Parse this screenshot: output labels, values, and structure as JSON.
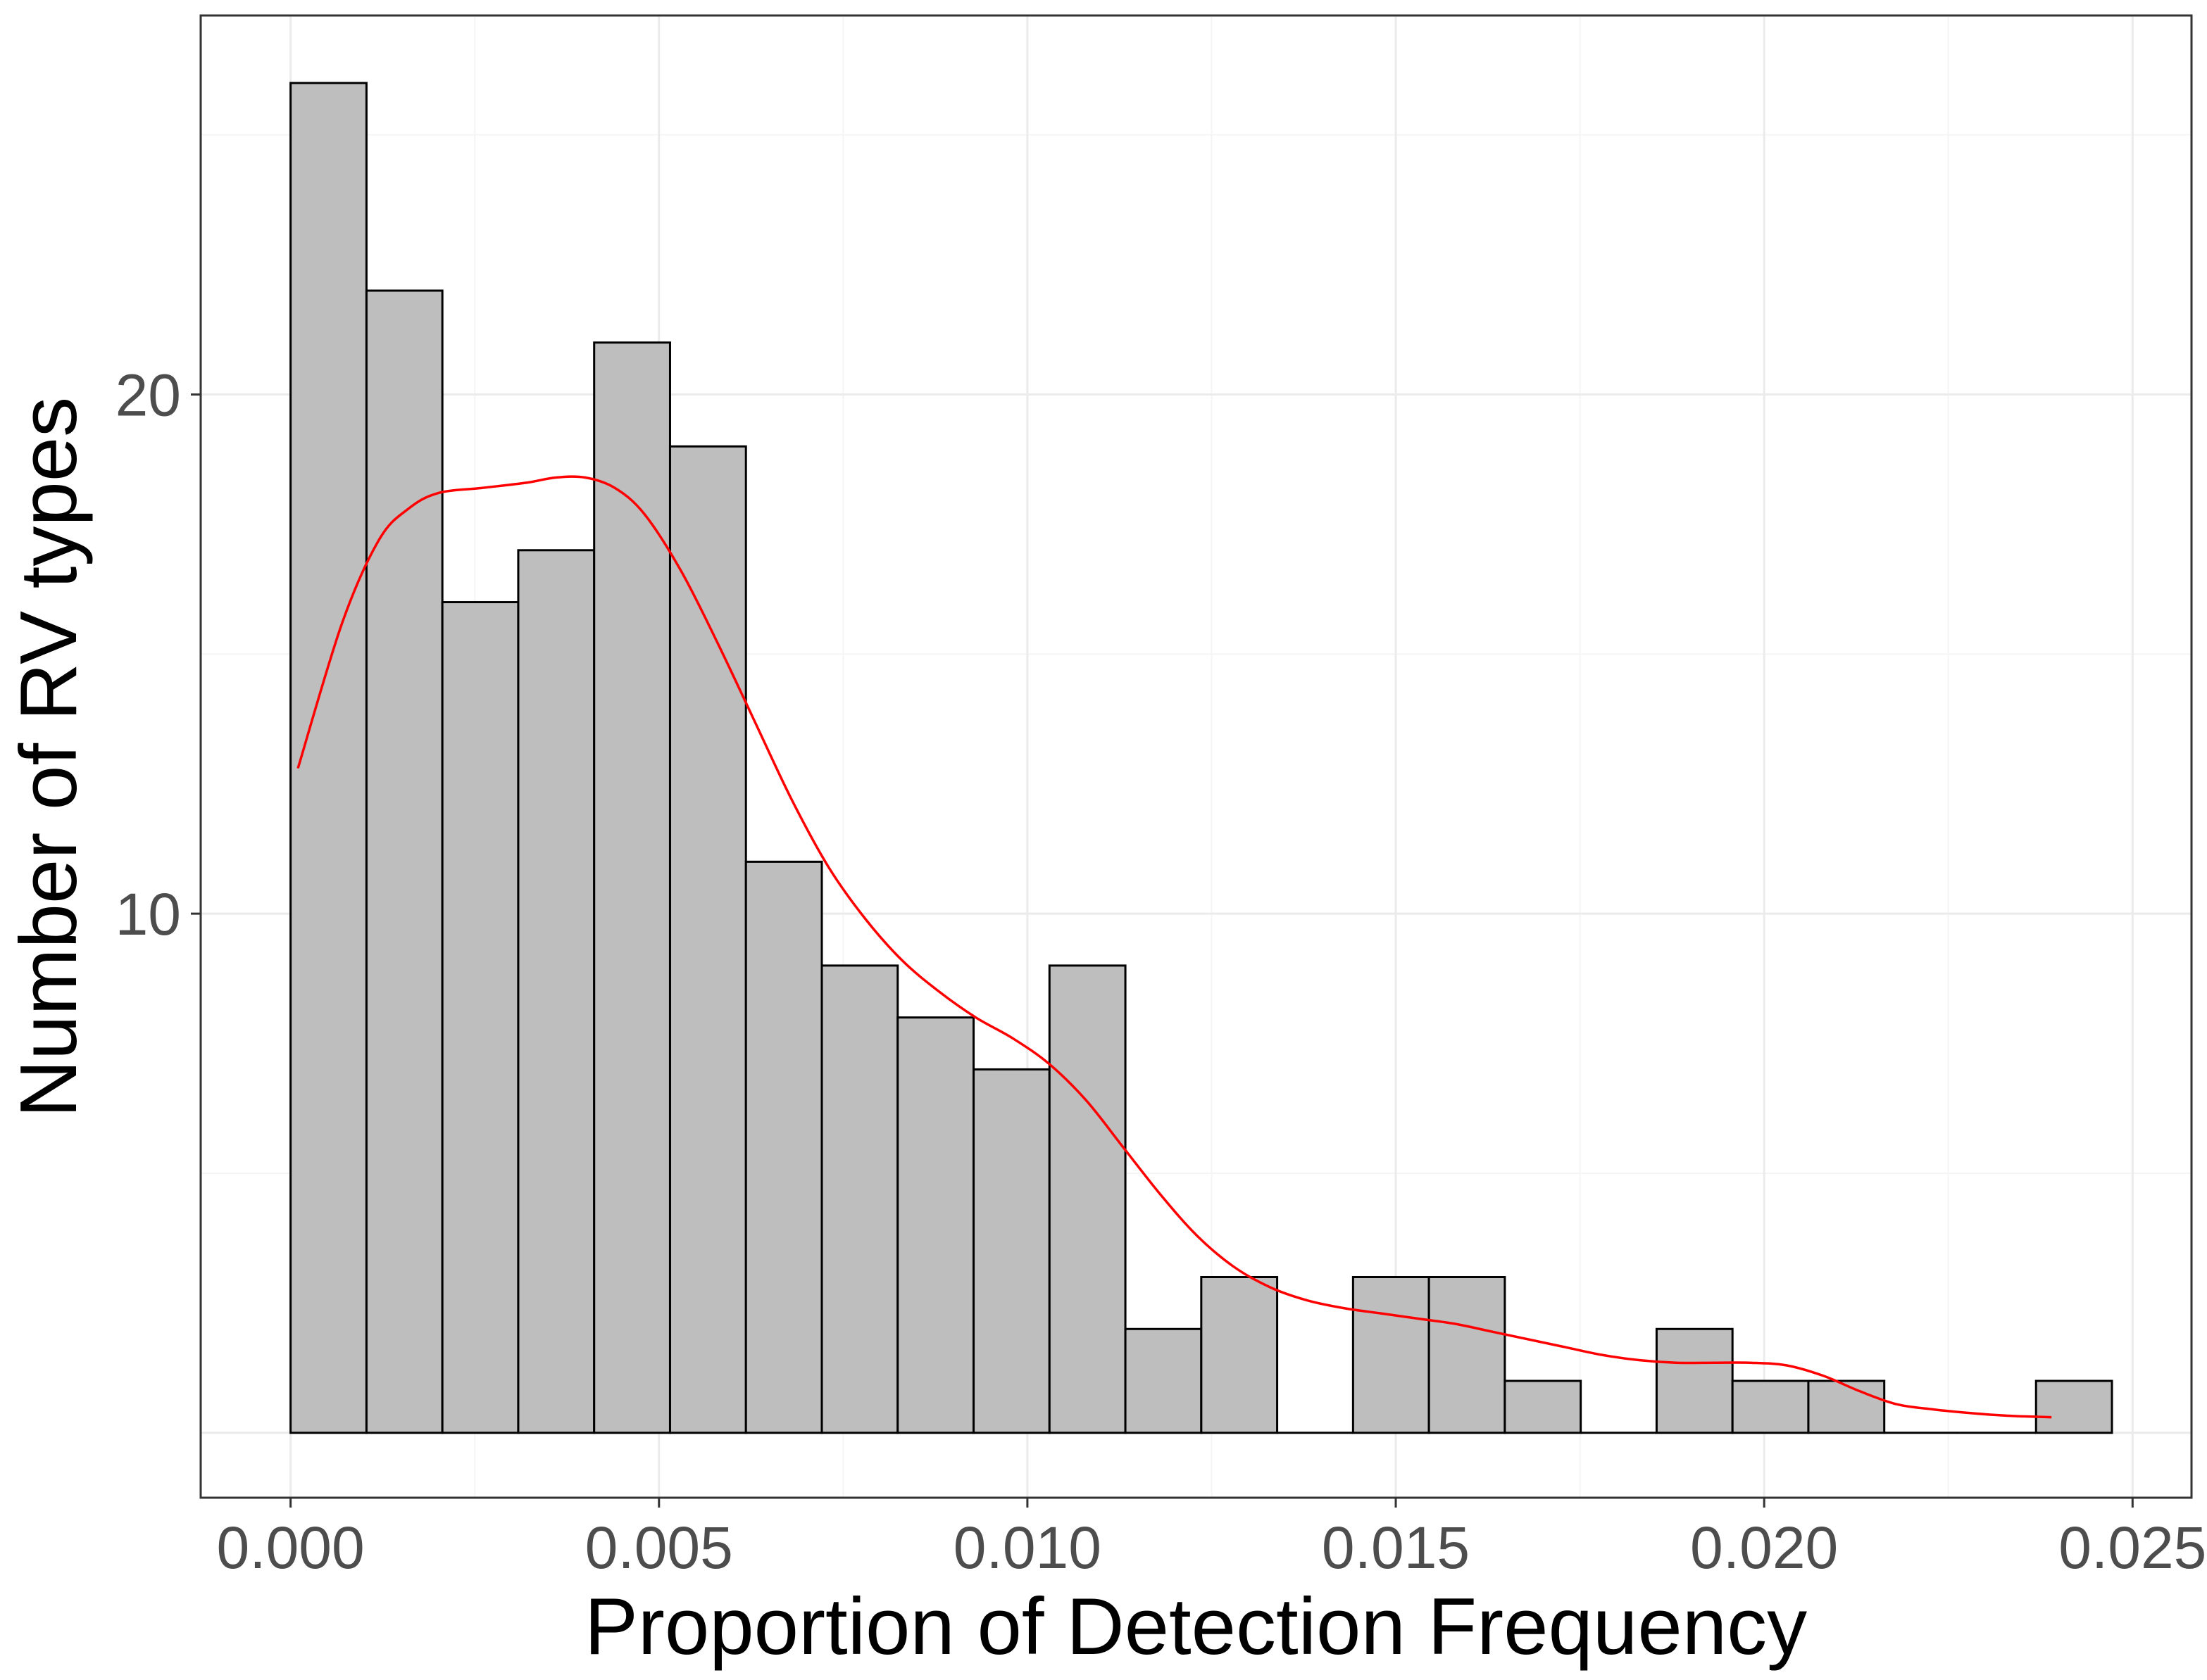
{
  "chart_data": {
    "type": "bar",
    "subtype": "histogram",
    "title": "",
    "xlabel": "Proportion of Detection Frequency",
    "ylabel": "Number of RV types",
    "xlim": [
      -0.00122,
      0.0258
    ],
    "ylim": [
      -1.25,
      27.3
    ],
    "x_ticks": [
      0.0,
      0.005,
      0.01,
      0.015,
      0.02,
      0.025
    ],
    "x_tick_labels": [
      "0.000",
      "0.005",
      "0.010",
      "0.015",
      "0.020",
      "0.025"
    ],
    "y_ticks": [
      10,
      20
    ],
    "y_tick_labels": [
      "10",
      "20"
    ],
    "grid": true,
    "bin_width": 0.00103,
    "bins": [
      {
        "x0": 0.0,
        "x1": 0.00103,
        "count": 26
      },
      {
        "x0": 0.00103,
        "x1": 0.00206,
        "count": 22
      },
      {
        "x0": 0.00206,
        "x1": 0.00309,
        "count": 16
      },
      {
        "x0": 0.00309,
        "x1": 0.00412,
        "count": 17
      },
      {
        "x0": 0.00412,
        "x1": 0.00515,
        "count": 21
      },
      {
        "x0": 0.00515,
        "x1": 0.00618,
        "count": 19
      },
      {
        "x0": 0.00618,
        "x1": 0.00721,
        "count": 11
      },
      {
        "x0": 0.00721,
        "x1": 0.00824,
        "count": 9
      },
      {
        "x0": 0.00824,
        "x1": 0.00927,
        "count": 8
      },
      {
        "x0": 0.00927,
        "x1": 0.0103,
        "count": 7
      },
      {
        "x0": 0.0103,
        "x1": 0.01133,
        "count": 9
      },
      {
        "x0": 0.01133,
        "x1": 0.01236,
        "count": 2
      },
      {
        "x0": 0.01236,
        "x1": 0.01339,
        "count": 3
      },
      {
        "x0": 0.01339,
        "x1": 0.01442,
        "count": 0
      },
      {
        "x0": 0.01442,
        "x1": 0.01545,
        "count": 3
      },
      {
        "x0": 0.01545,
        "x1": 0.01648,
        "count": 3
      },
      {
        "x0": 0.01648,
        "x1": 0.01751,
        "count": 1
      },
      {
        "x0": 0.01751,
        "x1": 0.01854,
        "count": 0
      },
      {
        "x0": 0.01854,
        "x1": 0.01957,
        "count": 2
      },
      {
        "x0": 0.01957,
        "x1": 0.0206,
        "count": 1
      },
      {
        "x0": 0.0206,
        "x1": 0.02163,
        "count": 1
      },
      {
        "x0": 0.02163,
        "x1": 0.02266,
        "count": 0
      },
      {
        "x0": 0.02266,
        "x1": 0.02369,
        "count": 0
      },
      {
        "x0": 0.02369,
        "x1": 0.02472,
        "count": 1
      }
    ],
    "density_curve": {
      "x": [
        0.0001,
        0.0007,
        0.0012,
        0.0016,
        0.002,
        0.0026,
        0.0032,
        0.0036,
        0.004,
        0.0044,
        0.0048,
        0.0053,
        0.0058,
        0.0063,
        0.0068,
        0.0073,
        0.0078,
        0.0083,
        0.0088,
        0.0093,
        0.0098,
        0.0103,
        0.0108,
        0.0113,
        0.0118,
        0.0123,
        0.0128,
        0.0133,
        0.0138,
        0.0143,
        0.0148,
        0.0153,
        0.0158,
        0.0163,
        0.0168,
        0.0173,
        0.0178,
        0.0183,
        0.0188,
        0.0193,
        0.0198,
        0.0203,
        0.0208,
        0.0213,
        0.0218,
        0.0223,
        0.0228,
        0.0233,
        0.0239
      ],
      "y": [
        12.8,
        15.6,
        17.2,
        17.8,
        18.1,
        18.2,
        18.3,
        18.4,
        18.4,
        18.2,
        17.7,
        16.6,
        15.2,
        13.7,
        12.2,
        10.9,
        9.9,
        9.1,
        8.5,
        8.0,
        7.6,
        7.1,
        6.4,
        5.5,
        4.6,
        3.8,
        3.2,
        2.8,
        2.55,
        2.4,
        2.3,
        2.2,
        2.1,
        1.95,
        1.8,
        1.65,
        1.5,
        1.4,
        1.35,
        1.35,
        1.35,
        1.3,
        1.1,
        0.8,
        0.55,
        0.45,
        0.38,
        0.33,
        0.3
      ],
      "color": "#ff0000"
    },
    "colors": {
      "bar_fill": "#bebebe",
      "bar_stroke": "#000000",
      "grid_major": "#ebebeb",
      "grid_minor": "#f5f5f5",
      "panel_border": "#333333"
    }
  }
}
